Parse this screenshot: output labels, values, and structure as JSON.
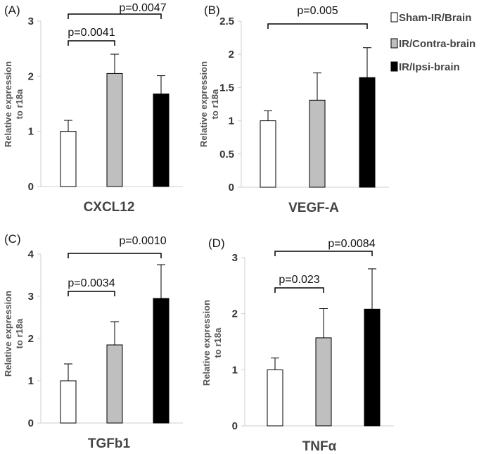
{
  "legend": [
    {
      "label": "Sham-IR/Brain",
      "color": "#ffffff"
    },
    {
      "label": "IR/Contra-brain",
      "color": "#bfbfbf"
    },
    {
      "label": "IR/Ipsi-brain",
      "color": "#000000"
    }
  ],
  "chart_data": [
    {
      "type": "bar",
      "panel": "(A)",
      "title": "CXCL12",
      "ylabel": [
        "Relative expression",
        "to r18a"
      ],
      "categories": [
        "Sham-IR/Brain",
        "IR/Contra-brain",
        "IR/Ipsi-brain"
      ],
      "values": [
        1.0,
        2.05,
        1.68
      ],
      "errors": [
        0.2,
        0.35,
        0.33
      ],
      "ylim": [
        0,
        3
      ],
      "yticks": [
        0,
        1,
        2,
        3
      ],
      "ytick_labels": [
        "0",
        "1",
        "2",
        "3"
      ],
      "brackets": [
        {
          "from": 0,
          "to": 1,
          "label": "p=0.0041"
        },
        {
          "from": 0,
          "to": 2,
          "label": "p=0.0047"
        }
      ]
    },
    {
      "type": "bar",
      "panel": "(B)",
      "title": "VEGF-A",
      "ylabel": [
        "Relative expression",
        "to r18a"
      ],
      "categories": [
        "Sham-IR/Brain",
        "IR/Contra-brain",
        "IR/Ipsi-brain"
      ],
      "values": [
        1.0,
        1.31,
        1.65
      ],
      "errors": [
        0.15,
        0.41,
        0.45
      ],
      "ylim": [
        0,
        2.5
      ],
      "yticks": [
        0,
        0.5,
        1,
        1.5,
        2,
        2.5
      ],
      "ytick_labels": [
        "0",
        "0.5",
        "1",
        "1.5",
        "2",
        "2.5"
      ],
      "brackets": [
        {
          "from": 0,
          "to": 2,
          "label": "p=0.005"
        }
      ]
    },
    {
      "type": "bar",
      "panel": "(C)",
      "title": "TGFb1",
      "ylabel": [
        "Relative expression",
        "to r18a"
      ],
      "categories": [
        "Sham-IR/Brain",
        "IR/Contra-brain",
        "IR/Ipsi-brain"
      ],
      "values": [
        1.0,
        1.85,
        2.95
      ],
      "errors": [
        0.4,
        0.55,
        0.8
      ],
      "ylim": [
        0,
        4
      ],
      "yticks": [
        0,
        1,
        2,
        3,
        4
      ],
      "ytick_labels": [
        "0",
        "1",
        "2",
        "3",
        "4"
      ],
      "brackets": [
        {
          "from": 0,
          "to": 1,
          "label": "p=0.0034"
        },
        {
          "from": 0,
          "to": 2,
          "label": "p=0.0010"
        }
      ]
    },
    {
      "type": "bar",
      "panel": "(D)",
      "title": "TNFα",
      "ylabel": [
        "Relative expression",
        "to r18a"
      ],
      "categories": [
        "Sham-IR/Brain",
        "IR/Contra-brain",
        "IR/Ipsi-brain"
      ],
      "values": [
        1.0,
        1.57,
        2.08
      ],
      "errors": [
        0.21,
        0.52,
        0.72
      ],
      "ylim": [
        0,
        3
      ],
      "yticks": [
        0,
        1,
        2,
        3
      ],
      "ytick_labels": [
        "0",
        "1",
        "2",
        "3"
      ],
      "brackets": [
        {
          "from": 0,
          "to": 1,
          "label": "p=0.023"
        },
        {
          "from": 0,
          "to": 2,
          "label": "p=0.0084"
        }
      ]
    }
  ]
}
